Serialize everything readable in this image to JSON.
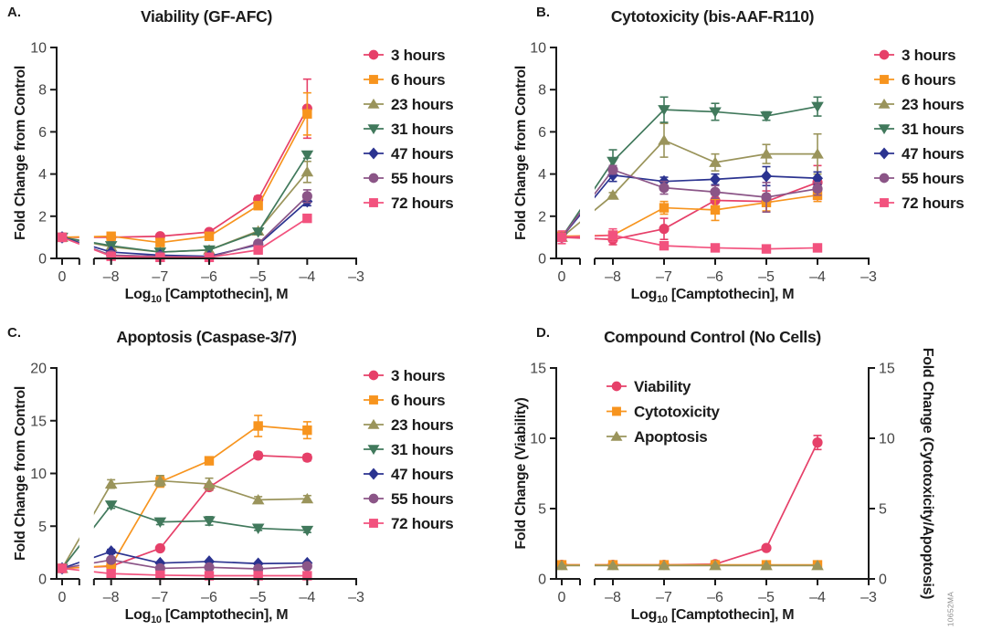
{
  "figure": {
    "watermark": "10652MA"
  },
  "chart_data": [
    {
      "id": "A",
      "panel_label": "A.",
      "type": "line",
      "title": "Viability (GF-AFC)",
      "ylabel": "Fold Change from Control",
      "ylim": [
        0,
        10
      ],
      "yticks": [
        0,
        2,
        4,
        6,
        8,
        10
      ],
      "x_tick_labels": [
        "0",
        "–8",
        "–7",
        "–6",
        "–5",
        "–4",
        "–3"
      ],
      "xlabel": {
        "pre": "Log",
        "sub": "10",
        "post": " [Camptothecin], M"
      },
      "axis_break": true,
      "grid": false,
      "legend_position": "right",
      "series": [
        {
          "name": "3 hours",
          "marker": "circle",
          "color": "#e64069",
          "y": [
            1.0,
            1.0,
            1.05,
            1.25,
            2.8,
            7.1
          ],
          "err": [
            0.08,
            0.05,
            0.05,
            0.08,
            0.15,
            1.4
          ]
        },
        {
          "name": "6 hours",
          "marker": "square",
          "color": "#f7941e",
          "y": [
            1.0,
            1.05,
            0.75,
            1.05,
            2.5,
            6.85
          ],
          "err": [
            0.05,
            0.05,
            0.08,
            0.08,
            0.12,
            1.0
          ]
        },
        {
          "name": "23 hours",
          "marker": "triangle-up",
          "color": "#9a945b",
          "y": [
            1.0,
            0.55,
            0.3,
            0.4,
            1.3,
            4.1
          ],
          "err": [
            0.05,
            0.05,
            0.05,
            0.05,
            0.12,
            0.5
          ]
        },
        {
          "name": "31 hours",
          "marker": "triangle-down",
          "color": "#41795c",
          "y": [
            1.0,
            0.6,
            0.3,
            0.4,
            1.25,
            4.9
          ],
          "err": [
            0.05,
            0.05,
            0.05,
            0.05,
            0.1,
            0.15
          ]
        },
        {
          "name": "47 hours",
          "marker": "diamond",
          "color": "#2b3390",
          "y": [
            1.0,
            0.3,
            0.15,
            0.1,
            0.65,
            2.7
          ],
          "err": [
            0.05,
            0.05,
            0.03,
            0.03,
            0.08,
            0.2
          ]
        },
        {
          "name": "55 hours",
          "marker": "circle",
          "color": "#8b5587",
          "y": [
            1.0,
            0.15,
            0.1,
            0.05,
            0.7,
            2.95
          ],
          "err": [
            0.05,
            0.03,
            0.03,
            0.03,
            0.08,
            0.3
          ]
        },
        {
          "name": "72 hours",
          "marker": "square",
          "color": "#f2527e",
          "y": [
            1.0,
            0.1,
            0.05,
            0.05,
            0.4,
            1.9
          ],
          "err": [
            0.05,
            0.03,
            0.03,
            0.03,
            0.08,
            0.15
          ]
        }
      ]
    },
    {
      "id": "B",
      "panel_label": "B.",
      "type": "line",
      "title": "Cytotoxicity (bis-AAF-R110)",
      "ylabel": "Fold Change from Control",
      "ylim": [
        0,
        10
      ],
      "yticks": [
        0,
        2,
        4,
        6,
        8,
        10
      ],
      "x_tick_labels": [
        "0",
        "–8",
        "–7",
        "–6",
        "–5",
        "–4",
        "–3"
      ],
      "xlabel": {
        "pre": "Log",
        "sub": "10",
        "post": " [Camptothecin], M"
      },
      "axis_break": true,
      "grid": false,
      "legend_position": "right",
      "series": [
        {
          "name": "3 hours",
          "marker": "circle",
          "color": "#e64069",
          "y": [
            1.0,
            0.9,
            1.4,
            2.75,
            2.7,
            3.6
          ],
          "err": [
            0.15,
            0.25,
            0.5,
            0.3,
            0.5,
            0.8
          ]
        },
        {
          "name": "6 hours",
          "marker": "square",
          "color": "#f7941e",
          "y": [
            1.05,
            1.1,
            2.4,
            2.3,
            2.65,
            3.0
          ],
          "err": [
            0.1,
            0.1,
            0.3,
            0.5,
            0.4,
            0.3
          ]
        },
        {
          "name": "23 hours",
          "marker": "triangle-up",
          "color": "#9a945b",
          "y": [
            1.0,
            3.0,
            5.6,
            4.55,
            4.95,
            4.95
          ],
          "err": [
            0.1,
            0.12,
            0.8,
            0.4,
            0.45,
            0.95
          ]
        },
        {
          "name": "31 hours",
          "marker": "triangle-down",
          "color": "#41795c",
          "y": [
            1.0,
            4.6,
            7.05,
            6.95,
            6.75,
            7.2
          ],
          "err": [
            0.1,
            0.55,
            0.6,
            0.4,
            0.2,
            0.45
          ]
        },
        {
          "name": "47 hours",
          "marker": "diamond",
          "color": "#2b3390",
          "y": [
            1.0,
            3.95,
            3.65,
            3.75,
            3.9,
            3.8
          ],
          "err": [
            0.1,
            0.3,
            0.2,
            0.25,
            0.45,
            0.3
          ]
        },
        {
          "name": "55 hours",
          "marker": "circle",
          "color": "#8b5587",
          "y": [
            1.0,
            4.2,
            3.35,
            3.15,
            2.9,
            3.3
          ],
          "err": [
            0.1,
            0.2,
            0.3,
            0.3,
            0.7,
            0.3
          ]
        },
        {
          "name": "72 hours",
          "marker": "square",
          "color": "#f2527e",
          "y": [
            1.0,
            1.1,
            0.6,
            0.5,
            0.45,
            0.5
          ],
          "err": [
            0.3,
            0.3,
            0.15,
            0.05,
            0.05,
            0.05
          ]
        }
      ]
    },
    {
      "id": "C",
      "panel_label": "C.",
      "type": "line",
      "title": "Apoptosis (Caspase-3/7)",
      "ylabel": "Fold Change from Control",
      "ylim": [
        0,
        20
      ],
      "yticks": [
        0,
        5,
        10,
        15,
        20
      ],
      "x_tick_labels": [
        "0",
        "–8",
        "–7",
        "–6",
        "–5",
        "–4",
        "–3"
      ],
      "xlabel": {
        "pre": "Log",
        "sub": "10",
        "post": " [Camptothecin], M"
      },
      "axis_break": true,
      "grid": false,
      "legend_position": "right",
      "series": [
        {
          "name": "3 hours",
          "marker": "circle",
          "color": "#e64069",
          "y": [
            1.0,
            1.2,
            2.9,
            8.7,
            11.7,
            11.5
          ],
          "err": [
            0.1,
            0.1,
            0.2,
            0.3,
            0.3,
            0.3
          ]
        },
        {
          "name": "6 hours",
          "marker": "square",
          "color": "#f7941e",
          "y": [
            1.0,
            1.25,
            9.2,
            11.2,
            14.5,
            14.1
          ],
          "err": [
            0.1,
            0.1,
            0.5,
            0.3,
            1.0,
            0.8
          ]
        },
        {
          "name": "23 hours",
          "marker": "triangle-up",
          "color": "#9a945b",
          "y": [
            1.0,
            9.0,
            9.3,
            9.0,
            7.5,
            7.6
          ],
          "err": [
            0.1,
            0.4,
            0.5,
            0.55,
            0.3,
            0.3
          ]
        },
        {
          "name": "31 hours",
          "marker": "triangle-down",
          "color": "#41795c",
          "y": [
            1.0,
            7.0,
            5.4,
            5.5,
            4.8,
            4.6
          ],
          "err": [
            0.1,
            0.3,
            0.25,
            0.4,
            0.2,
            0.2
          ]
        },
        {
          "name": "47 hours",
          "marker": "diamond",
          "color": "#2b3390",
          "y": [
            1.0,
            2.6,
            1.5,
            1.65,
            1.45,
            1.5
          ],
          "err": [
            0.1,
            0.2,
            0.1,
            0.1,
            0.1,
            0.1
          ]
        },
        {
          "name": "55 hours",
          "marker": "circle",
          "color": "#8b5587",
          "y": [
            1.0,
            1.8,
            1.0,
            1.1,
            0.95,
            1.2
          ],
          "err": [
            0.1,
            0.15,
            0.1,
            0.1,
            0.1,
            0.1
          ]
        },
        {
          "name": "72 hours",
          "marker": "square",
          "color": "#f2527e",
          "y": [
            1.0,
            0.5,
            0.35,
            0.3,
            0.3,
            0.3
          ],
          "err": [
            0.1,
            0.1,
            0.05,
            0.05,
            0.05,
            0.05
          ]
        }
      ]
    },
    {
      "id": "D",
      "panel_label": "D.",
      "type": "line",
      "title": "Compound Control (No Cells)",
      "ylabel": "Fold Change (Viability)",
      "ylabel_right": "Fold Change (Cytotoxicity/Apoptosis)",
      "dual_axis": true,
      "ylim": [
        0,
        15
      ],
      "yticks": [
        0,
        5,
        10,
        15
      ],
      "x_tick_labels": [
        "0",
        "–8",
        "–7",
        "–6",
        "–5",
        "–4",
        "–3"
      ],
      "xlabel": {
        "pre": "Log",
        "sub": "10",
        "post": " [Camptothecin], M"
      },
      "axis_break": true,
      "grid": false,
      "legend_position": "inside",
      "series": [
        {
          "name": "Viability",
          "marker": "circle",
          "color": "#e64069",
          "y": [
            1.0,
            1.0,
            1.0,
            1.05,
            2.2,
            9.7
          ],
          "err": [
            0,
            0,
            0,
            0,
            0.1,
            0.5
          ]
        },
        {
          "name": "Cytotoxicity",
          "marker": "square",
          "color": "#f7941e",
          "y": [
            1.0,
            1.0,
            1.0,
            1.0,
            1.0,
            1.0
          ],
          "err": [
            0,
            0,
            0,
            0,
            0,
            0
          ]
        },
        {
          "name": "Apoptosis",
          "marker": "triangle-up",
          "color": "#9a945b",
          "y": [
            0.95,
            0.95,
            0.95,
            0.95,
            0.95,
            0.95
          ],
          "err": [
            0,
            0,
            0,
            0,
            0,
            0
          ]
        }
      ]
    }
  ]
}
